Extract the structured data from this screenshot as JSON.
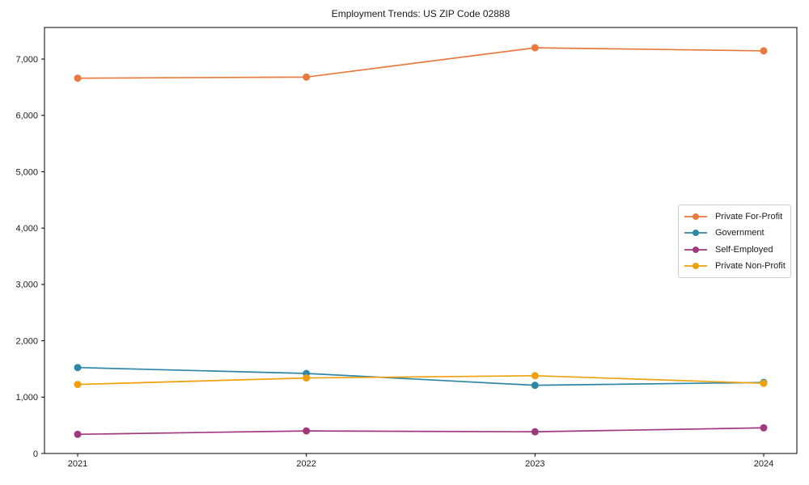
{
  "chart_data": {
    "type": "line",
    "title": "Employment Trends: US ZIP Code 02888",
    "xlabel": "",
    "ylabel": "",
    "categories": [
      "2021",
      "2022",
      "2023",
      "2024"
    ],
    "series": [
      {
        "name": "Private For-Profit",
        "color": "#e87a3d",
        "values": [
          6660,
          6680,
          7200,
          7145
        ]
      },
      {
        "name": "Government",
        "color": "#2f87a8",
        "values": [
          1525,
          1420,
          1210,
          1260
        ]
      },
      {
        "name": "Self-Employed",
        "color": "#a1397e",
        "values": [
          340,
          400,
          385,
          455
        ]
      },
      {
        "name": "Private Non-Profit",
        "color": "#f0a00c",
        "values": [
          1225,
          1340,
          1380,
          1245
        ]
      }
    ],
    "ylim": [
      0,
      7560
    ],
    "yticks": {
      "values": [
        0,
        1000,
        2000,
        3000,
        4000,
        5000,
        6000,
        7000
      ],
      "labels": [
        "0",
        "1,000",
        "2,000",
        "3,000",
        "4,000",
        "5,000",
        "6,000",
        "7,000"
      ]
    },
    "grid": false,
    "marker": "circle",
    "legend_position": "center-right",
    "axis_color": "#000000",
    "text_color": "#1a1a1a",
    "legend_border_color": "#cccccc"
  }
}
